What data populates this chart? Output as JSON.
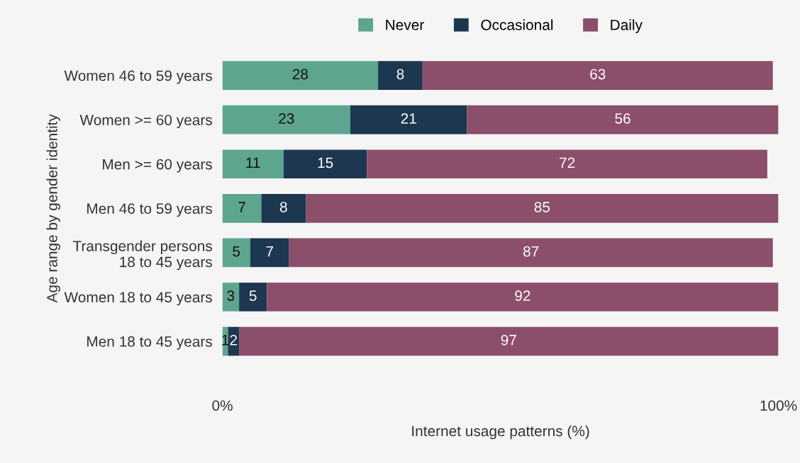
{
  "chart_data": {
    "type": "bar",
    "orientation": "horizontal",
    "stacked": true,
    "xlabel": "Internet usage patterns (%)",
    "ylabel": "Age range by gender identity",
    "categories": [
      "Women 46 to 59 years",
      "Women >= 60 years",
      "Men >= 60 years",
      "Men 46 to 59 years",
      "Transgender persons\n18 to 45 years",
      "Women 18 to 45 years",
      "Men 18 to 45 years"
    ],
    "series": [
      {
        "name": "Never",
        "color": "#5ea58f",
        "values": [
          28,
          23,
          11,
          7,
          5,
          3,
          1
        ]
      },
      {
        "name": "Occasional",
        "color": "#1d3750",
        "values": [
          8,
          21,
          15,
          8,
          7,
          5,
          2
        ]
      },
      {
        "name": "Daily",
        "color": "#8b4f6b",
        "values": [
          63,
          56,
          72,
          85,
          87,
          92,
          97
        ]
      }
    ],
    "xlim": [
      0,
      100
    ],
    "xticks": [
      {
        "value": 0,
        "label": "0%"
      },
      {
        "value": 100,
        "label": "100%"
      }
    ],
    "data_labels": true,
    "legend": "top",
    "grid": false
  }
}
